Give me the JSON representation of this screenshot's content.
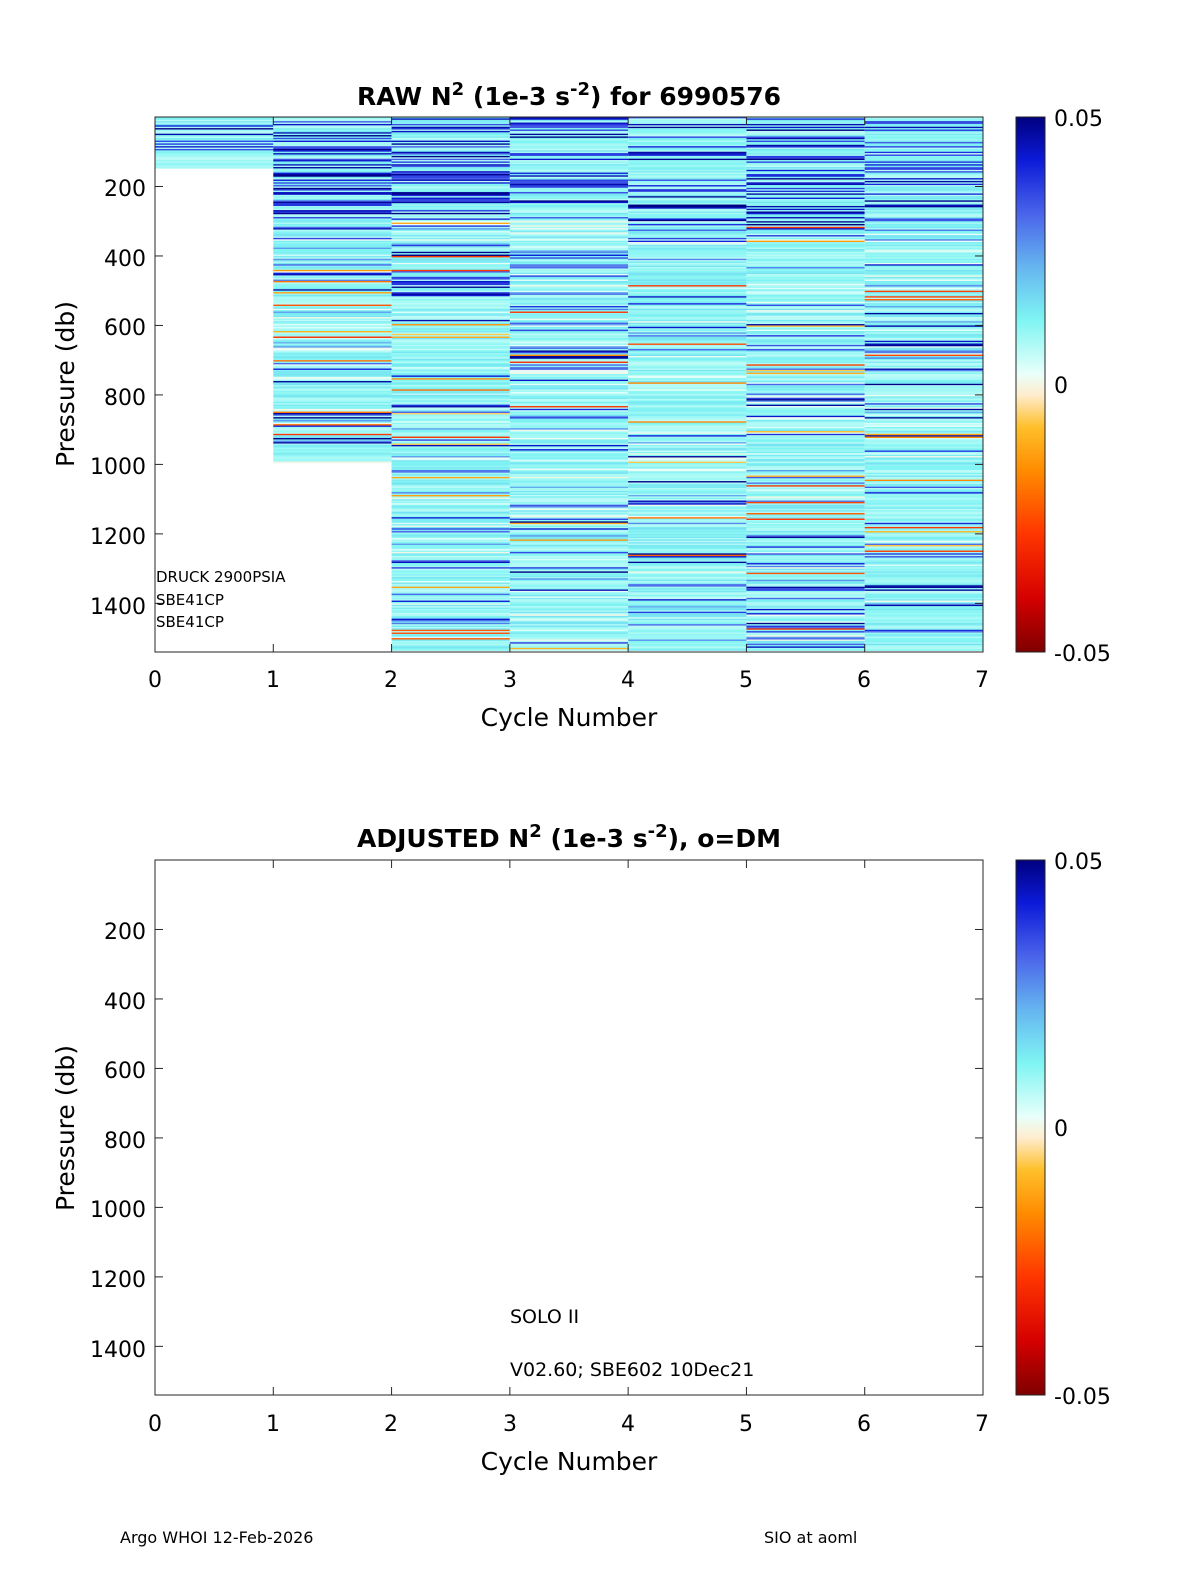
{
  "chart_data": [
    {
      "type": "heatmap",
      "title_prefix": "RAW N",
      "title_sup1": "2",
      "title_mid": " (1e-3 s",
      "title_sup2": "-2",
      "title_suffix": ") for 6990576",
      "xlabel": "Cycle Number",
      "ylabel": "Pressure (db)",
      "xlim": [
        0,
        7
      ],
      "ylim": [
        1540,
        0
      ],
      "xticks": [
        "0",
        "1",
        "2",
        "3",
        "4",
        "5",
        "6",
        "7"
      ],
      "yticks": [
        "200",
        "400",
        "600",
        "800",
        "1000",
        "1200",
        "1400"
      ],
      "clim": [
        -0.05,
        0.05
      ],
      "colorbar_ticks": [
        "0.05",
        "0",
        "-0.05"
      ],
      "profiles": [
        {
          "cycle": 1,
          "pmin": 0,
          "pmax": 145
        },
        {
          "cycle": 2,
          "pmin": 0,
          "pmax": 995
        },
        {
          "cycle": 3,
          "pmin": 0,
          "pmax": 1535
        },
        {
          "cycle": 4,
          "pmin": 0,
          "pmax": 1535
        },
        {
          "cycle": 5,
          "pmin": 0,
          "pmax": 1535
        },
        {
          "cycle": 6,
          "pmin": 0,
          "pmax": 1535
        },
        {
          "cycle": 7,
          "pmin": 0,
          "pmax": 1535
        }
      ],
      "annotations": [
        "DRUCK 2900PSIA",
        "SBE41CP",
        "SBE41CP"
      ]
    },
    {
      "type": "heatmap",
      "title_prefix": "ADJUSTED N",
      "title_sup1": "2",
      "title_mid": " (1e-3 s",
      "title_sup2": "-2",
      "title_suffix": "), o=DM",
      "xlabel": "Cycle Number",
      "ylabel": "Pressure (db)",
      "xlim": [
        0,
        7
      ],
      "ylim": [
        1540,
        0
      ],
      "xticks": [
        "0",
        "1",
        "2",
        "3",
        "4",
        "5",
        "6",
        "7"
      ],
      "yticks": [
        "200",
        "400",
        "600",
        "800",
        "1000",
        "1200",
        "1400"
      ],
      "clim": [
        -0.05,
        0.05
      ],
      "colorbar_ticks": [
        "0.05",
        "0",
        "-0.05"
      ],
      "profiles": [],
      "annotations": [
        "SOLO II",
        "V02.60; SBE602 10Dec21"
      ]
    }
  ],
  "footer": {
    "left": "Argo WHOI 12-Feb-2026",
    "right": "SIO at aoml"
  }
}
